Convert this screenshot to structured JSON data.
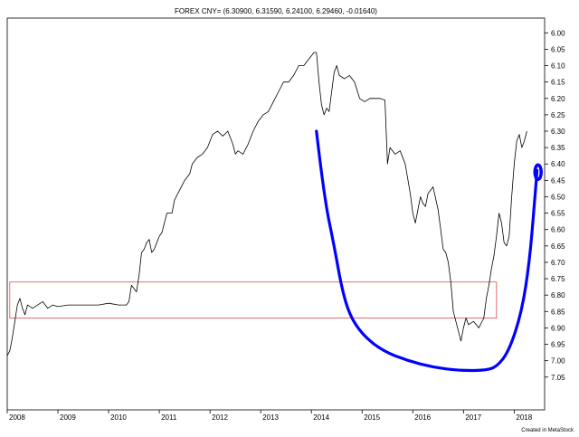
{
  "chart_data": {
    "type": "line",
    "title": "FOREX CNY= (6.30900, 6.31590, 6.24100, 6.29460, -0.01640)",
    "credit": "Created in MetaStock",
    "xlabel": "",
    "ylabel": "",
    "y_axis_position": "right",
    "y_inverted": true,
    "ylim": [
      5.955,
      7.15
    ],
    "xlim": [
      2008.0,
      2018.6
    ],
    "grid": false,
    "x_ticks": [
      {
        "label": "2008",
        "value": 2008.0
      },
      {
        "label": "2009",
        "value": 2009.0
      },
      {
        "label": "2010",
        "value": 2010.0
      },
      {
        "label": "2011",
        "value": 2011.0
      },
      {
        "label": "2012",
        "value": 2012.0
      },
      {
        "label": "2013",
        "value": 2013.0
      },
      {
        "label": "2014",
        "value": 2014.0
      },
      {
        "label": "2015",
        "value": 2015.0
      },
      {
        "label": "2016",
        "value": 2016.0
      },
      {
        "label": "2017",
        "value": 2017.0
      },
      {
        "label": "2018",
        "value": 2018.0
      }
    ],
    "y_ticks": [
      "6.00",
      "6.05",
      "6.10",
      "6.15",
      "6.20",
      "6.25",
      "6.30",
      "6.35",
      "6.40",
      "6.45",
      "6.50",
      "6.55",
      "6.60",
      "6.65",
      "6.70",
      "6.75",
      "6.80",
      "6.85",
      "6.90",
      "6.95",
      "7.00",
      "7.05"
    ],
    "series": [
      {
        "color": "#000000",
        "points": [
          [
            2008.0,
            6.985
          ],
          [
            2008.05,
            6.97
          ],
          [
            2008.1,
            6.93
          ],
          [
            2008.15,
            6.88
          ],
          [
            2008.2,
            6.83
          ],
          [
            2008.25,
            6.81
          ],
          [
            2008.3,
            6.84
          ],
          [
            2008.35,
            6.86
          ],
          [
            2008.4,
            6.83
          ],
          [
            2008.5,
            6.84
          ],
          [
            2008.6,
            6.83
          ],
          [
            2008.7,
            6.82
          ],
          [
            2008.8,
            6.84
          ],
          [
            2008.9,
            6.83
          ],
          [
            2009.0,
            6.835
          ],
          [
            2009.2,
            6.83
          ],
          [
            2009.5,
            6.83
          ],
          [
            2009.8,
            6.83
          ],
          [
            2010.0,
            6.825
          ],
          [
            2010.2,
            6.83
          ],
          [
            2010.35,
            6.83
          ],
          [
            2010.4,
            6.82
          ],
          [
            2010.45,
            6.77
          ],
          [
            2010.55,
            6.79
          ],
          [
            2010.6,
            6.74
          ],
          [
            2010.65,
            6.67
          ],
          [
            2010.7,
            6.66
          ],
          [
            2010.75,
            6.64
          ],
          [
            2010.8,
            6.63
          ],
          [
            2010.85,
            6.67
          ],
          [
            2010.9,
            6.66
          ],
          [
            2010.95,
            6.64
          ],
          [
            2011.0,
            6.62
          ],
          [
            2011.05,
            6.61
          ],
          [
            2011.1,
            6.58
          ],
          [
            2011.15,
            6.55
          ],
          [
            2011.25,
            6.55
          ],
          [
            2011.3,
            6.51
          ],
          [
            2011.4,
            6.48
          ],
          [
            2011.5,
            6.45
          ],
          [
            2011.6,
            6.43
          ],
          [
            2011.65,
            6.4
          ],
          [
            2011.75,
            6.38
          ],
          [
            2011.85,
            6.37
          ],
          [
            2011.95,
            6.35
          ],
          [
            2012.05,
            6.31
          ],
          [
            2012.15,
            6.3
          ],
          [
            2012.25,
            6.315
          ],
          [
            2012.35,
            6.3
          ],
          [
            2012.45,
            6.34
          ],
          [
            2012.5,
            6.37
          ],
          [
            2012.55,
            6.36
          ],
          [
            2012.65,
            6.37
          ],
          [
            2012.75,
            6.34
          ],
          [
            2012.85,
            6.3
          ],
          [
            2012.95,
            6.27
          ],
          [
            2013.05,
            6.25
          ],
          [
            2013.15,
            6.24
          ],
          [
            2013.25,
            6.21
          ],
          [
            2013.35,
            6.18
          ],
          [
            2013.45,
            6.15
          ],
          [
            2013.55,
            6.15
          ],
          [
            2013.65,
            6.13
          ],
          [
            2013.75,
            6.1
          ],
          [
            2013.85,
            6.1
          ],
          [
            2013.95,
            6.08
          ],
          [
            2014.0,
            6.07
          ],
          [
            2014.05,
            6.06
          ],
          [
            2014.1,
            6.06
          ],
          [
            2014.15,
            6.15
          ],
          [
            2014.2,
            6.22
          ],
          [
            2014.25,
            6.25
          ],
          [
            2014.3,
            6.23
          ],
          [
            2014.35,
            6.24
          ],
          [
            2014.4,
            6.18
          ],
          [
            2014.45,
            6.12
          ],
          [
            2014.5,
            6.1
          ],
          [
            2014.55,
            6.13
          ],
          [
            2014.65,
            6.14
          ],
          [
            2014.75,
            6.13
          ],
          [
            2014.85,
            6.15
          ],
          [
            2014.95,
            6.2
          ],
          [
            2015.05,
            6.21
          ],
          [
            2015.15,
            6.2
          ],
          [
            2015.25,
            6.2
          ],
          [
            2015.35,
            6.2
          ],
          [
            2015.45,
            6.205
          ],
          [
            2015.5,
            6.4
          ],
          [
            2015.55,
            6.35
          ],
          [
            2015.65,
            6.37
          ],
          [
            2015.75,
            6.36
          ],
          [
            2015.85,
            6.4
          ],
          [
            2015.95,
            6.49
          ],
          [
            2016.0,
            6.55
          ],
          [
            2016.05,
            6.58
          ],
          [
            2016.1,
            6.54
          ],
          [
            2016.15,
            6.5
          ],
          [
            2016.2,
            6.52
          ],
          [
            2016.25,
            6.53
          ],
          [
            2016.3,
            6.49
          ],
          [
            2016.4,
            6.47
          ],
          [
            2016.5,
            6.54
          ],
          [
            2016.55,
            6.6
          ],
          [
            2016.6,
            6.66
          ],
          [
            2016.65,
            6.67
          ],
          [
            2016.7,
            6.7
          ],
          [
            2016.75,
            6.76
          ],
          [
            2016.8,
            6.85
          ],
          [
            2016.85,
            6.88
          ],
          [
            2016.9,
            6.91
          ],
          [
            2016.95,
            6.94
          ],
          [
            2017.0,
            6.9
          ],
          [
            2017.05,
            6.87
          ],
          [
            2017.1,
            6.89
          ],
          [
            2017.2,
            6.88
          ],
          [
            2017.3,
            6.9
          ],
          [
            2017.4,
            6.87
          ],
          [
            2017.45,
            6.81
          ],
          [
            2017.5,
            6.77
          ],
          [
            2017.55,
            6.72
          ],
          [
            2017.6,
            6.68
          ],
          [
            2017.65,
            6.62
          ],
          [
            2017.7,
            6.55
          ],
          [
            2017.75,
            6.58
          ],
          [
            2017.8,
            6.64
          ],
          [
            2017.85,
            6.65
          ],
          [
            2017.9,
            6.62
          ],
          [
            2017.95,
            6.5
          ],
          [
            2018.0,
            6.4
          ],
          [
            2018.05,
            6.33
          ],
          [
            2018.1,
            6.31
          ],
          [
            2018.15,
            6.35
          ],
          [
            2018.2,
            6.33
          ],
          [
            2018.25,
            6.3
          ]
        ]
      }
    ],
    "annotations": [
      {
        "type": "rectangle",
        "color": "#e06060",
        "x": [
          2008.05,
          2017.65
        ],
        "y": [
          6.76,
          6.87
        ]
      },
      {
        "type": "freehand",
        "color": "#0000ff",
        "points": [
          [
            2014.1,
            6.3
          ],
          [
            2014.25,
            6.5
          ],
          [
            2014.45,
            6.65
          ],
          [
            2014.6,
            6.78
          ],
          [
            2014.75,
            6.86
          ],
          [
            2015.0,
            6.92
          ],
          [
            2015.4,
            6.97
          ],
          [
            2015.9,
            7.0
          ],
          [
            2016.4,
            7.02
          ],
          [
            2016.9,
            7.03
          ],
          [
            2017.4,
            7.03
          ],
          [
            2017.65,
            7.02
          ],
          [
            2017.9,
            6.97
          ],
          [
            2018.15,
            6.85
          ],
          [
            2018.3,
            6.7
          ],
          [
            2018.4,
            6.52
          ],
          [
            2018.45,
            6.42
          ]
        ]
      },
      {
        "type": "marker",
        "color": "#0000ff",
        "x": 2018.47,
        "y": 6.425
      }
    ]
  }
}
